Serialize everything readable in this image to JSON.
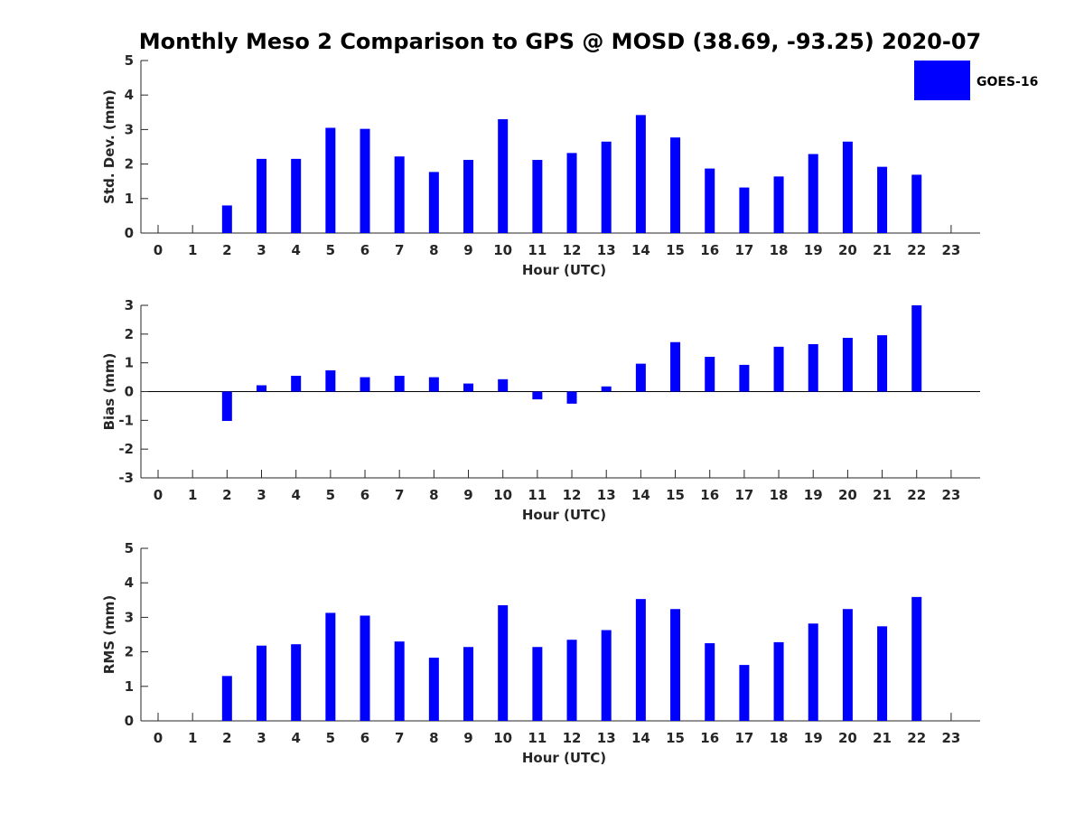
{
  "title": "Monthly Meso 2 Comparison to GPS @ MOSD (38.69, -93.25) 2020-07",
  "legend": {
    "label": "GOES-16",
    "color": "#0000ff"
  },
  "chart_data": [
    {
      "type": "bar",
      "name": "std-dev",
      "categories": [
        "0",
        "1",
        "2",
        "3",
        "4",
        "5",
        "6",
        "7",
        "8",
        "9",
        "10",
        "11",
        "12",
        "13",
        "14",
        "15",
        "16",
        "17",
        "18",
        "19",
        "20",
        "21",
        "22",
        "23"
      ],
      "values": [
        null,
        null,
        0.8,
        2.15,
        2.15,
        3.05,
        3.02,
        2.22,
        1.77,
        2.12,
        3.3,
        2.12,
        2.32,
        2.65,
        3.42,
        2.77,
        1.87,
        1.32,
        1.64,
        2.29,
        2.65,
        1.92,
        1.69,
        null
      ],
      "xlabel": "Hour (UTC)",
      "ylabel": "Std. Dev. (mm)",
      "ylim": [
        0,
        5
      ],
      "yticks": [
        "0",
        "1",
        "2",
        "3",
        "4",
        "5"
      ],
      "zero_line": false
    },
    {
      "type": "bar",
      "name": "bias",
      "categories": [
        "0",
        "1",
        "2",
        "3",
        "4",
        "5",
        "6",
        "7",
        "8",
        "9",
        "10",
        "11",
        "12",
        "13",
        "14",
        "15",
        "16",
        "17",
        "18",
        "19",
        "20",
        "21",
        "22",
        "23"
      ],
      "values": [
        null,
        null,
        -1.02,
        0.22,
        0.55,
        0.74,
        0.5,
        0.55,
        0.5,
        0.28,
        0.43,
        -0.27,
        -0.42,
        0.18,
        0.97,
        1.72,
        1.21,
        0.93,
        1.56,
        1.65,
        1.87,
        1.96,
        3.0,
        null
      ],
      "xlabel": "Hour (UTC)",
      "ylabel": "Bias (mm)",
      "ylim": [
        -3,
        3
      ],
      "yticks": [
        "-3",
        "-2",
        "-1",
        "0",
        "1",
        "2",
        "3"
      ],
      "zero_line": true
    },
    {
      "type": "bar",
      "name": "rms",
      "categories": [
        "0",
        "1",
        "2",
        "3",
        "4",
        "5",
        "6",
        "7",
        "8",
        "9",
        "10",
        "11",
        "12",
        "13",
        "14",
        "15",
        "16",
        "17",
        "18",
        "19",
        "20",
        "21",
        "22",
        "23"
      ],
      "values": [
        null,
        null,
        1.3,
        2.18,
        2.22,
        3.13,
        3.05,
        2.3,
        1.83,
        2.14,
        3.35,
        2.14,
        2.35,
        2.63,
        3.53,
        3.24,
        2.25,
        1.62,
        2.28,
        2.82,
        3.24,
        2.74,
        3.59,
        null
      ],
      "xlabel": "Hour (UTC)",
      "ylabel": "RMS (mm)",
      "ylim": [
        0,
        5
      ],
      "yticks": [
        "0",
        "1",
        "2",
        "3",
        "4",
        "5"
      ],
      "zero_line": false
    }
  ]
}
